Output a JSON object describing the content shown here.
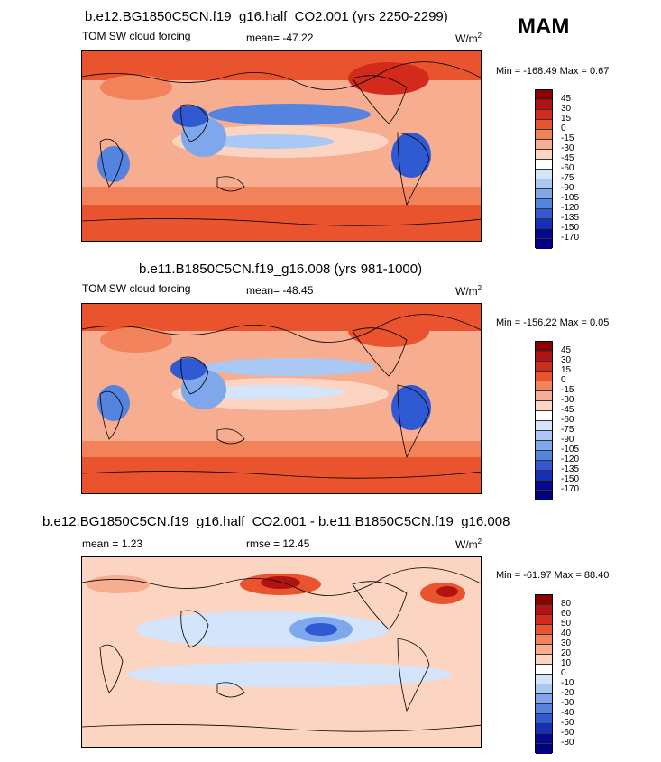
{
  "season": "MAM",
  "panels": [
    {
      "title": "b.e12.BG1850C5CN.f19_g16.half_CO2.001 (yrs 2250-2299)",
      "left_label": "TOM SW cloud forcing",
      "center_label": "mean= -47.22",
      "units": "W/m",
      "units_sup": "2",
      "min_max": "Min = -168.49 Max =   0.67",
      "colorbar_labels": [
        "45",
        "30",
        "15",
        "0",
        "-15",
        "-30",
        "-45",
        "-60",
        "-75",
        "-90",
        "-105",
        "-120",
        "-135",
        "-150",
        "-170"
      ]
    },
    {
      "title": "b.e11.B1850C5CN.f19_g16.008 (yrs 981-1000)",
      "left_label": "TOM SW cloud forcing",
      "center_label": "mean= -48.45",
      "units": "W/m",
      "units_sup": "2",
      "min_max": "Min = -156.22 Max =   0.05",
      "colorbar_labels": [
        "45",
        "30",
        "15",
        "0",
        "-15",
        "-30",
        "-45",
        "-60",
        "-75",
        "-90",
        "-105",
        "-120",
        "-135",
        "-150",
        "-170"
      ]
    },
    {
      "title": "b.e12.BG1850C5CN.f19_g16.half_CO2.001 - b.e11.B1850C5CN.f19_g16.008",
      "left_label": "mean =   1.23",
      "center_label": "rmse =  12.45",
      "units": "W/m",
      "units_sup": "2",
      "min_max": "Min = -61.97 Max =  88.40",
      "colorbar_labels": [
        "80",
        "60",
        "50",
        "40",
        "30",
        "20",
        "10",
        "0",
        "-10",
        "-20",
        "-30",
        "-40",
        "-50",
        "-60",
        "-80"
      ]
    }
  ],
  "colorbar_colors": [
    "#8b0000",
    "#b31212",
    "#d42a1c",
    "#e9532e",
    "#f2825a",
    "#f7ad8f",
    "#fbd5c1",
    "#ffffff",
    "#d3e4fb",
    "#a9c8f4",
    "#7fa7ec",
    "#5484e0",
    "#2f5ad2",
    "#1530b8",
    "#020b8e",
    "#000080"
  ],
  "chart_data": [
    {
      "type": "heatmap",
      "title": "b.e12.BG1850C5CN.f19_g16.half_CO2.001 (yrs 2250-2299)",
      "variable": "TOM SW cloud forcing",
      "units": "W/m2",
      "mean": -47.22,
      "min": -168.49,
      "max": 0.67,
      "levels": [
        45,
        30,
        15,
        0,
        -15,
        -30,
        -45,
        -60,
        -75,
        -90,
        -105,
        -120,
        -135,
        -150,
        -170
      ]
    },
    {
      "type": "heatmap",
      "title": "b.e11.B1850C5CN.f19_g16.008 (yrs 981-1000)",
      "variable": "TOM SW cloud forcing",
      "units": "W/m2",
      "mean": -48.45,
      "min": -156.22,
      "max": 0.05,
      "levels": [
        45,
        30,
        15,
        0,
        -15,
        -30,
        -45,
        -60,
        -75,
        -90,
        -105,
        -120,
        -135,
        -150,
        -170
      ]
    },
    {
      "type": "heatmap",
      "title": "b.e12.BG1850C5CN.f19_g16.half_CO2.001 - b.e11.B1850C5CN.f19_g16.008",
      "units": "W/m2",
      "mean": 1.23,
      "rmse": 12.45,
      "min": -61.97,
      "max": 88.4,
      "levels": [
        80,
        60,
        50,
        40,
        30,
        20,
        10,
        0,
        -10,
        -20,
        -30,
        -40,
        -50,
        -60,
        -80
      ]
    }
  ]
}
